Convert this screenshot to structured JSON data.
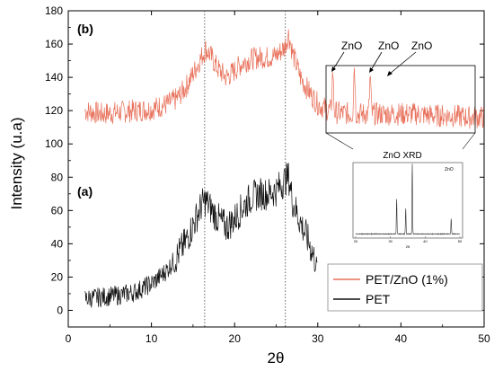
{
  "chart_data": {
    "type": "line",
    "xlabel": "2θ",
    "ylabel": "Intensity (u.a)",
    "xlim": [
      0,
      50
    ],
    "ylim": [
      -10,
      180
    ],
    "x_ticks": [
      "0",
      "10",
      "20",
      "30",
      "40",
      "50"
    ],
    "y_ticks": [
      "0",
      "20",
      "40",
      "60",
      "80",
      "100",
      "120",
      "140",
      "160",
      "180"
    ],
    "grid": false,
    "legend_position": "bottom-right",
    "reference_lines_x": [
      16.4,
      26.1
    ],
    "panel_labels": {
      "b": "(b)",
      "a": "(a)"
    },
    "series": [
      {
        "name": "PET/ZnO (1%)",
        "color": "#e8705a",
        "x": [
          2,
          4,
          6,
          8,
          10,
          12,
          13,
          14,
          15,
          16,
          16.5,
          17,
          18,
          19,
          20,
          21,
          22,
          23,
          24,
          25,
          26,
          26.5,
          27,
          28,
          29,
          30,
          31,
          32,
          34,
          36,
          38,
          40,
          42,
          44,
          46,
          48,
          50
        ],
        "values": [
          120,
          118,
          119,
          120,
          121,
          124,
          127,
          133,
          142,
          152,
          157,
          154,
          145,
          140,
          144,
          149,
          151,
          152,
          152,
          153,
          158,
          166,
          154,
          139,
          131,
          124,
          121,
          119,
          118,
          118,
          118,
          118,
          118,
          117,
          117,
          116,
          116
        ]
      },
      {
        "name": "PET",
        "color": "#111111",
        "x": [
          2,
          4,
          6,
          8,
          10,
          11,
          12,
          13,
          14,
          15,
          16,
          16.5,
          17,
          18,
          19,
          20,
          21,
          22,
          23,
          24,
          25,
          26,
          26.5,
          27,
          28,
          29,
          30
        ],
        "values": [
          7,
          8,
          9,
          11,
          16,
          20,
          25,
          32,
          40,
          51,
          63,
          66,
          62,
          55,
          50,
          55,
          62,
          68,
          70,
          70,
          72,
          78,
          80,
          65,
          52,
          40,
          25
        ]
      }
    ],
    "annotations": [
      "ZnO",
      "ZnO",
      "ZnO"
    ],
    "inset": {
      "title": "ZnO XRD",
      "label": "ZnO",
      "xlabel": "2θ",
      "x_ticks": [
        "20",
        "30",
        "40",
        "50"
      ],
      "xlim": [
        20,
        50
      ],
      "peaks_2theta": [
        31.8,
        34.4,
        36.3,
        47.5
      ],
      "peak_intensity": [
        0.5,
        0.36,
        1.0,
        0.22
      ]
    }
  }
}
